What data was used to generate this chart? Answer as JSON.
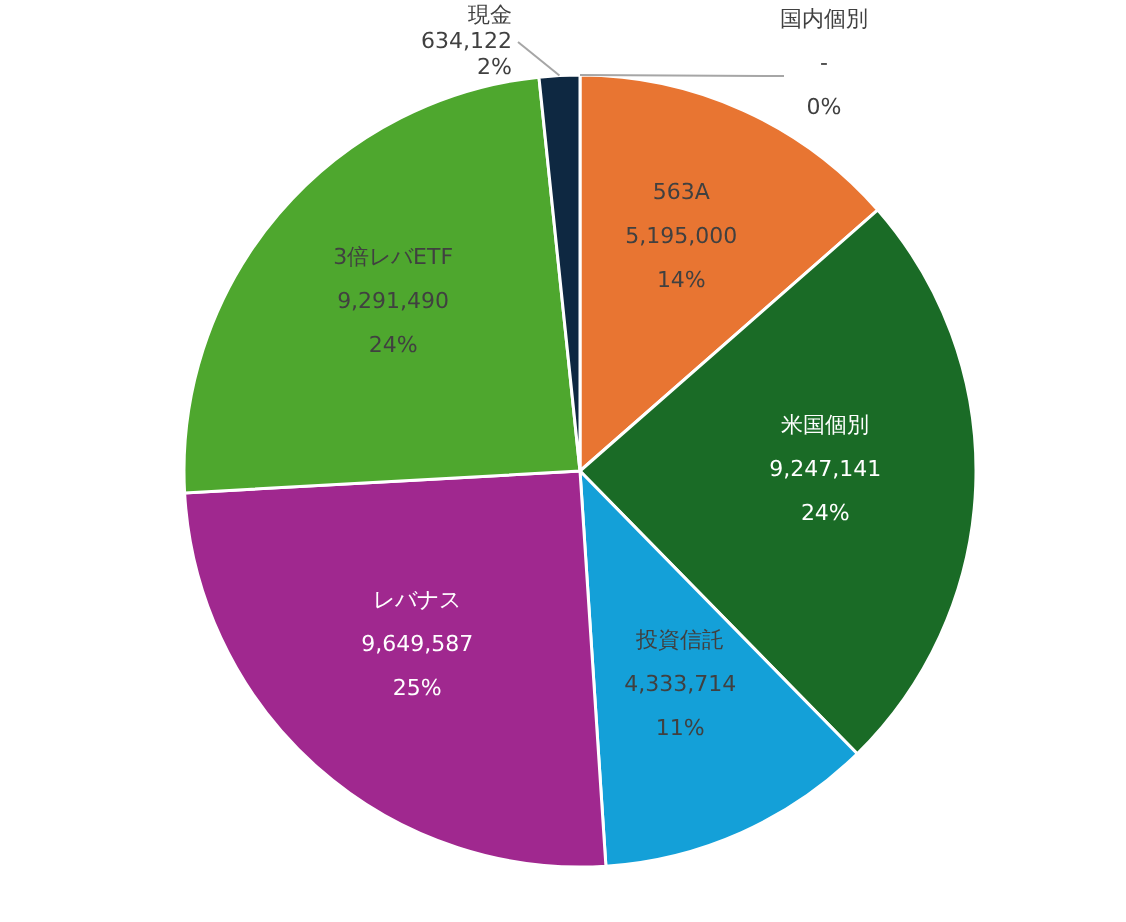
{
  "chart_data": {
    "type": "pie",
    "categories": [
      "563A",
      "米国個別",
      "投資信託",
      "レバナス",
      "3倍レバETF",
      "現金",
      "国内個別"
    ],
    "values": [
      5195000,
      9247141,
      4333714,
      9649587,
      9291490,
      634122,
      0
    ],
    "value_labels": [
      "5,195,000\n14%",
      "9,247,141\n24%",
      "4,333,714\n11%",
      "9,649,587\n25%",
      "9,291,490\n24%",
      "634,122\n2%",
      "-\n0%"
    ],
    "colors": [
      "#e87532",
      "#1a6b26",
      "#14a0d8",
      "#a0288f",
      "#4ea72e",
      "#0e2841",
      "#7f7f7f"
    ],
    "legend": false
  }
}
